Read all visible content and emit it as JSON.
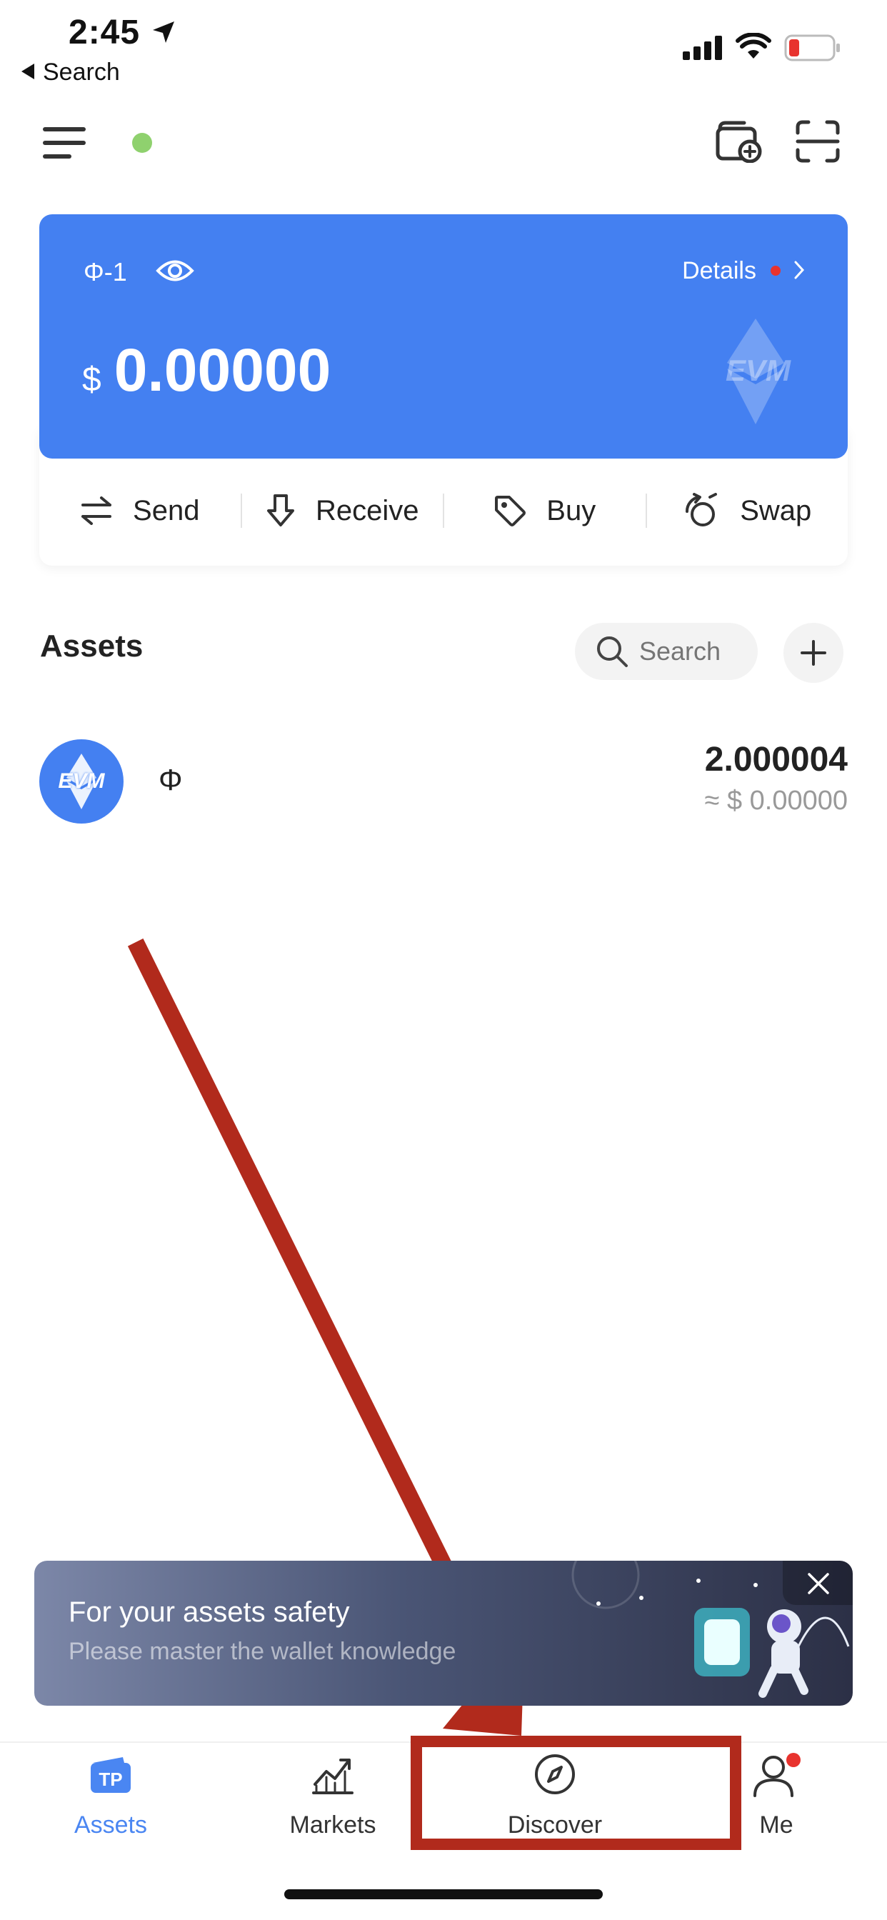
{
  "status_bar": {
    "time": "2:45",
    "back_label": "Search"
  },
  "wallet": {
    "name": "Φ-1",
    "details_label": "Details",
    "currency_symbol": "$",
    "balance": "0.00000",
    "network_badge": "EVM"
  },
  "actions": [
    {
      "label": "Send",
      "icon": "swap-arrows-icon"
    },
    {
      "label": "Receive",
      "icon": "download-arrow-icon"
    },
    {
      "label": "Buy",
      "icon": "tag-icon"
    },
    {
      "label": "Swap",
      "icon": "swap-cycle-icon"
    }
  ],
  "assets": {
    "title": "Assets",
    "search_placeholder": "Search",
    "items": [
      {
        "icon_label": "EVM",
        "symbol": "Φ",
        "amount": "2.000004",
        "value": "≈ $ 0.00000"
      }
    ]
  },
  "banner": {
    "title": "For your assets safety",
    "subtitle": "Please master the wallet knowledge"
  },
  "tabbar": {
    "tabs": [
      {
        "label": "Assets",
        "active": true
      },
      {
        "label": "Markets",
        "active": false
      },
      {
        "label": "Discover",
        "active": false
      },
      {
        "label": "Me",
        "active": false
      }
    ]
  },
  "colors": {
    "primary": "#4480f1",
    "annotation": "#b12a1c",
    "badge_red": "#e8332e",
    "online_green": "#8fd16e"
  }
}
